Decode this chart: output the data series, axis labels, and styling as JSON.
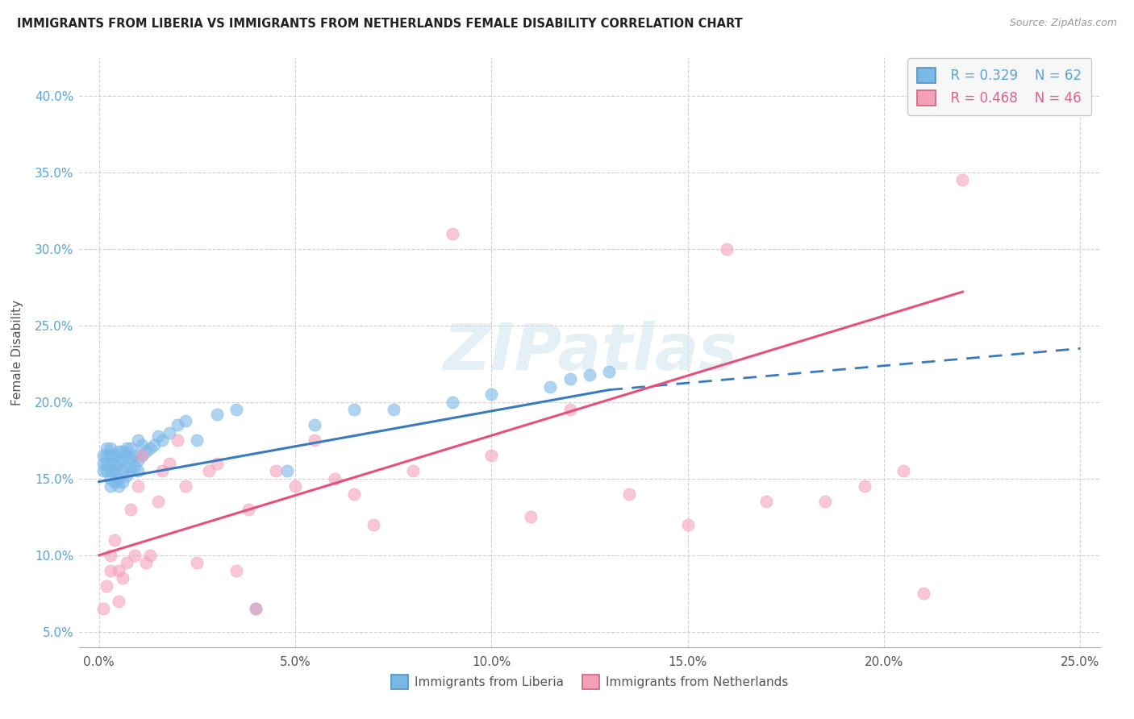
{
  "title": "IMMIGRANTS FROM LIBERIA VS IMMIGRANTS FROM NETHERLANDS FEMALE DISABILITY CORRELATION CHART",
  "source": "Source: ZipAtlas.com",
  "ylabel": "Female Disability",
  "xlim": [
    -0.005,
    0.255
  ],
  "ylim": [
    0.04,
    0.425
  ],
  "x_ticks": [
    0.0,
    0.05,
    0.1,
    0.15,
    0.2,
    0.25
  ],
  "y_ticks": [
    0.05,
    0.1,
    0.15,
    0.2,
    0.25,
    0.3,
    0.35,
    0.4
  ],
  "y_tick_labels": [
    "5.0%",
    "10.0%",
    "15.0%",
    "20.0%",
    "25.0%",
    "30.0%",
    "35.0%",
    "40.0%"
  ],
  "x_tick_labels": [
    "0.0%",
    "5.0%",
    "10.0%",
    "15.0%",
    "20.0%",
    "25.0%"
  ],
  "legend_r1": "R = 0.329",
  "legend_n1": "N = 62",
  "legend_r2": "R = 0.468",
  "legend_n2": "N = 46",
  "color_liberia": "#7ab8e8",
  "color_netherlands": "#f4a0b8",
  "trendline_liberia": "#3a7abf",
  "trendline_netherlands": "#e8507a",
  "liberia_trend_x0": 0.0,
  "liberia_trend_y0": 0.148,
  "liberia_trend_x1": 0.13,
  "liberia_trend_y1": 0.208,
  "liberia_trend_dash_x1": 0.25,
  "liberia_trend_dash_y1": 0.235,
  "netherlands_trend_x0": 0.0,
  "netherlands_trend_y0": 0.1,
  "netherlands_trend_x1": 0.22,
  "netherlands_trend_y1": 0.272,
  "liberia_x": [
    0.001,
    0.001,
    0.001,
    0.002,
    0.002,
    0.002,
    0.002,
    0.003,
    0.003,
    0.003,
    0.003,
    0.003,
    0.003,
    0.004,
    0.004,
    0.004,
    0.004,
    0.004,
    0.005,
    0.005,
    0.005,
    0.005,
    0.006,
    0.006,
    0.006,
    0.006,
    0.007,
    0.007,
    0.007,
    0.007,
    0.008,
    0.008,
    0.008,
    0.009,
    0.009,
    0.01,
    0.01,
    0.01,
    0.011,
    0.011,
    0.012,
    0.013,
    0.014,
    0.015,
    0.016,
    0.018,
    0.02,
    0.022,
    0.025,
    0.03,
    0.035,
    0.04,
    0.048,
    0.055,
    0.065,
    0.075,
    0.09,
    0.1,
    0.115,
    0.12,
    0.125,
    0.13
  ],
  "liberia_y": [
    0.16,
    0.155,
    0.165,
    0.155,
    0.16,
    0.17,
    0.165,
    0.145,
    0.15,
    0.155,
    0.16,
    0.165,
    0.17,
    0.148,
    0.155,
    0.16,
    0.155,
    0.165,
    0.145,
    0.15,
    0.16,
    0.168,
    0.148,
    0.155,
    0.162,
    0.168,
    0.152,
    0.158,
    0.165,
    0.17,
    0.155,
    0.163,
    0.17,
    0.158,
    0.165,
    0.155,
    0.162,
    0.175,
    0.165,
    0.172,
    0.168,
    0.17,
    0.172,
    0.178,
    0.175,
    0.18,
    0.185,
    0.188,
    0.175,
    0.192,
    0.195,
    0.065,
    0.155,
    0.185,
    0.195,
    0.195,
    0.2,
    0.205,
    0.21,
    0.215,
    0.218,
    0.22
  ],
  "netherlands_x": [
    0.001,
    0.002,
    0.003,
    0.003,
    0.004,
    0.005,
    0.005,
    0.006,
    0.007,
    0.008,
    0.009,
    0.01,
    0.011,
    0.012,
    0.013,
    0.015,
    0.016,
    0.018,
    0.02,
    0.022,
    0.025,
    0.028,
    0.03,
    0.035,
    0.038,
    0.04,
    0.045,
    0.05,
    0.055,
    0.06,
    0.065,
    0.07,
    0.08,
    0.09,
    0.1,
    0.11,
    0.12,
    0.135,
    0.15,
    0.16,
    0.17,
    0.185,
    0.195,
    0.205,
    0.21,
    0.22
  ],
  "netherlands_y": [
    0.065,
    0.08,
    0.09,
    0.1,
    0.11,
    0.07,
    0.09,
    0.085,
    0.095,
    0.13,
    0.1,
    0.145,
    0.165,
    0.095,
    0.1,
    0.135,
    0.155,
    0.16,
    0.175,
    0.145,
    0.095,
    0.155,
    0.16,
    0.09,
    0.13,
    0.065,
    0.155,
    0.145,
    0.175,
    0.15,
    0.14,
    0.12,
    0.155,
    0.31,
    0.165,
    0.125,
    0.195,
    0.14,
    0.12,
    0.3,
    0.135,
    0.135,
    0.145,
    0.155,
    0.075,
    0.345
  ]
}
